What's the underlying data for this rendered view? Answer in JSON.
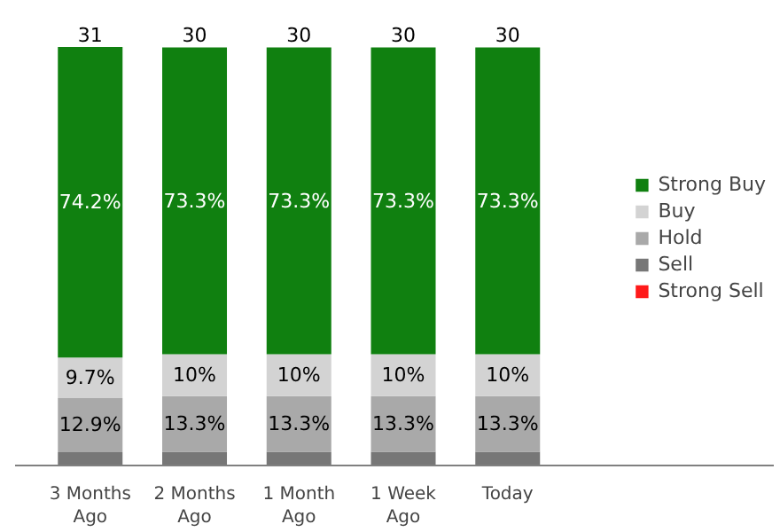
{
  "chart_data": {
    "type": "bar",
    "stacked": true,
    "categories": [
      "3 Months\nAgo",
      "2 Months\nAgo",
      "1 Month\nAgo",
      "1 Week\nAgo",
      "Today"
    ],
    "series": [
      {
        "name": "Strong Sell",
        "color": "#ff1a1a",
        "values": [
          0,
          0,
          0,
          0,
          0
        ],
        "value_labels": [
          null,
          null,
          null,
          null,
          null
        ]
      },
      {
        "name": "Sell",
        "color": "#777777",
        "values": [
          3.2,
          3.3,
          3.3,
          3.3,
          3.3
        ],
        "value_labels": [
          null,
          null,
          null,
          null,
          null
        ]
      },
      {
        "name": "Hold",
        "color": "#a9a9a9",
        "values": [
          12.9,
          13.3,
          13.3,
          13.3,
          13.3
        ],
        "value_labels": [
          "12.9%",
          "13.3%",
          "13.3%",
          "13.3%",
          "13.3%"
        ]
      },
      {
        "name": "Buy",
        "color": "#d3d3d3",
        "values": [
          9.7,
          10,
          10,
          10,
          10
        ],
        "value_labels": [
          "9.7%",
          "10%",
          "10%",
          "10%",
          "10%"
        ]
      },
      {
        "name": "Strong Buy",
        "color": "#108010",
        "values": [
          74.2,
          73.3,
          73.3,
          73.3,
          73.3
        ],
        "value_labels": [
          "74.2%",
          "73.3%",
          "73.3%",
          "73.3%",
          "73.3%"
        ]
      }
    ],
    "annotations": [
      {
        "text": "31",
        "x": "3 Months\nAgo",
        "y": 100
      },
      {
        "text": "30",
        "x": "2 Months\nAgo",
        "y": 100
      },
      {
        "text": "30",
        "x": "1 Month\nAgo",
        "y": 100
      },
      {
        "text": "30",
        "x": "1 Week\nAgo",
        "y": 100
      },
      {
        "text": "30",
        "x": "Today",
        "y": 100
      }
    ],
    "legend": "right",
    "grid": false
  }
}
